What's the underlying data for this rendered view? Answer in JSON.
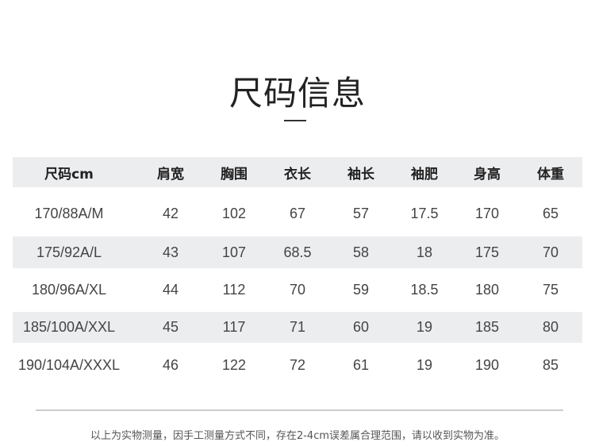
{
  "title": "尺码信息",
  "table": {
    "headers": [
      "尺码cm",
      "肩宽",
      "胸围",
      "衣长",
      "袖长",
      "袖肥",
      "身高",
      "体重"
    ],
    "rows": [
      [
        "170/88A/M",
        "42",
        "102",
        "67",
        "57",
        "17.5",
        "170",
        "65"
      ],
      [
        "175/92A/L",
        "43",
        "107",
        "68.5",
        "58",
        "18",
        "175",
        "70"
      ],
      [
        "180/96A/XL",
        "44",
        "112",
        "70",
        "59",
        "18.5",
        "180",
        "75"
      ],
      [
        "185/100A/XXL",
        "45",
        "117",
        "71",
        "60",
        "19",
        "185",
        "80"
      ],
      [
        "190/104A/XXXL",
        "46",
        "122",
        "72",
        "61",
        "19",
        "190",
        "85"
      ]
    ]
  },
  "note": "以上为实物测量，因手工测量方式不同，存在2-4cm误差属合理范围，请以收到实物为准。",
  "colors": {
    "stripe": "#ecedef",
    "text": "#444444"
  }
}
